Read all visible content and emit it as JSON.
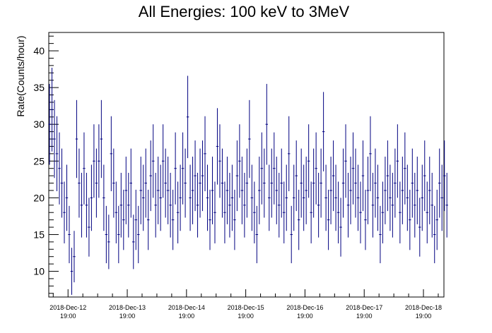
{
  "chart_data": {
    "type": "scatter",
    "title": "All Energies:  100 keV to 3MeV",
    "xlabel": "",
    "ylabel": "Rate(Counts/hour)",
    "ylim": [
      6.5,
      42.5
    ],
    "yticks": [
      10,
      15,
      20,
      25,
      30,
      35,
      40
    ],
    "xlim": [
      -7.8,
      152.3
    ],
    "xticks": [
      {
        "x": 0,
        "label": [
          "2018-Dec-12",
          "19:00"
        ]
      },
      {
        "x": 24,
        "label": [
          "2018-Dec-13",
          "19:00"
        ]
      },
      {
        "x": 48,
        "label": [
          "2018-Dec-14",
          "19:00"
        ]
      },
      {
        "x": 72,
        "label": [
          "2018-Dec-15",
          "19:00"
        ]
      },
      {
        "x": 96,
        "label": [
          "2018-Dec-16",
          "19:00"
        ]
      },
      {
        "x": 120,
        "label": [
          "2018-Dec-17",
          "19:00"
        ]
      },
      {
        "x": 144,
        "label": [
          "2018-Dec-18",
          "19:00"
        ]
      }
    ],
    "grid": false,
    "series": [
      {
        "color": "#000080",
        "x_start": -7.5,
        "x_step": 1,
        "y": [
          30,
          32,
          28,
          26,
          24,
          22,
          18,
          20,
          15,
          10,
          12,
          28,
          22,
          19,
          24,
          19,
          16,
          20,
          25,
          22,
          25,
          28,
          20,
          15,
          14,
          26,
          22,
          18,
          15,
          19,
          17,
          21,
          19,
          22,
          14,
          17,
          15,
          21,
          20,
          22,
          17,
          23,
          25,
          19,
          21,
          20,
          25,
          22,
          21,
          19,
          17,
          24,
          18,
          20,
          24,
          22,
          31,
          20,
          21,
          23,
          19,
          22,
          23,
          26,
          20,
          17,
          21,
          18,
          27,
          25,
          22,
          18,
          21,
          19,
          20,
          17,
          23,
          25,
          21,
          19,
          22,
          28,
          20,
          18,
          15,
          21,
          24,
          22,
          30,
          20,
          22,
          24,
          21,
          19,
          22,
          18,
          20,
          26,
          15,
          20,
          23,
          17,
          22,
          20,
          21,
          25,
          18,
          22,
          24,
          19,
          22,
          29,
          20,
          17,
          21,
          23,
          20,
          18,
          16,
          22,
          25,
          19,
          21,
          24,
          22,
          20,
          18,
          23,
          17,
          21,
          26,
          19,
          22,
          20,
          15,
          18,
          21,
          23,
          20,
          19,
          22,
          25,
          18,
          21,
          24,
          20,
          17,
          22,
          19,
          21,
          16,
          20,
          23,
          18,
          21,
          19,
          15,
          17,
          22,
          20,
          23,
          19
        ],
        "err": [
          5.5,
          5.7,
          5.3,
          5.1,
          4.9,
          4.7,
          4.2,
          4.5,
          3.9,
          3.2,
          3.5,
          5.3,
          4.7,
          4.4,
          4.9,
          4.4,
          4.0,
          4.5,
          5.0,
          4.7,
          5.0,
          5.3,
          4.5,
          3.9,
          3.7,
          5.1,
          4.7,
          4.2,
          3.9,
          4.4,
          4.1,
          4.6,
          4.4,
          4.7,
          3.7,
          4.1,
          3.9,
          4.6,
          4.5,
          4.7,
          4.1,
          4.8,
          5.0,
          4.4,
          4.6,
          4.5,
          5.0,
          4.7,
          4.6,
          4.4,
          4.1,
          4.9,
          4.2,
          4.5,
          4.9,
          4.7,
          5.6,
          4.5,
          4.6,
          4.8,
          4.4,
          4.7,
          4.8,
          5.1,
          4.5,
          4.1,
          4.6,
          4.2,
          5.2,
          5.0,
          4.7,
          4.2,
          4.6,
          4.4,
          4.5,
          4.1,
          4.8,
          5.0,
          4.6,
          4.4,
          4.7,
          5.3,
          4.5,
          4.2,
          3.9,
          4.6,
          4.9,
          4.7,
          5.5,
          4.5,
          4.7,
          4.9,
          4.6,
          4.4,
          4.7,
          4.2,
          4.5,
          5.1,
          3.9,
          4.5,
          4.8,
          4.1,
          4.7,
          4.5,
          4.6,
          5.0,
          4.2,
          4.7,
          4.9,
          4.4,
          4.7,
          5.4,
          4.5,
          4.1,
          4.6,
          4.8,
          4.5,
          4.2,
          4.0,
          4.7,
          5.0,
          4.4,
          4.6,
          4.9,
          4.7,
          4.5,
          4.2,
          4.8,
          4.1,
          4.6,
          5.1,
          4.4,
          4.7,
          4.5,
          3.9,
          4.2,
          4.6,
          4.8,
          4.5,
          4.4,
          4.7,
          5.0,
          4.2,
          4.6,
          4.9,
          4.5,
          4.1,
          4.7,
          4.4,
          4.6,
          4.0,
          4.5,
          4.8,
          4.2,
          4.6,
          4.4,
          3.9,
          4.1,
          4.7,
          4.5,
          4.8,
          4.4
        ]
      }
    ]
  }
}
